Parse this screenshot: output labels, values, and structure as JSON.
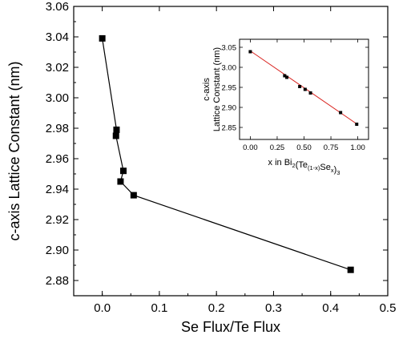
{
  "chart_data": [
    {
      "type": "line",
      "xlabel": "Se Flux/Te Flux",
      "ylabel": "c-axis Lattice Constant (nm)",
      "xlim": [
        -0.05,
        0.5
      ],
      "ylim": [
        2.87,
        3.06
      ],
      "x_ticks": [
        0.0,
        0.1,
        0.2,
        0.3,
        0.4,
        0.5
      ],
      "x_tick_labels": [
        "0.0",
        "0.1",
        "0.2",
        "0.3",
        "0.4",
        "0.5"
      ],
      "y_ticks": [
        2.88,
        2.9,
        2.92,
        2.94,
        2.96,
        2.98,
        3.0,
        3.02,
        3.04,
        3.06
      ],
      "y_tick_labels": [
        "2.88",
        "2.90",
        "2.92",
        "2.94",
        "2.96",
        "2.98",
        "3.00",
        "3.02",
        "3.04",
        "3.06"
      ],
      "grid": false,
      "series": [
        {
          "marker": "square",
          "color": "#000000",
          "x": [
            0.0,
            0.025,
            0.024,
            0.037,
            0.032,
            0.055,
            0.435
          ],
          "y": [
            3.039,
            2.979,
            2.975,
            2.952,
            2.945,
            2.936,
            2.887
          ]
        }
      ]
    },
    {
      "type": "scatter",
      "role": "inset",
      "xlabel_parts": [
        {
          "t": "x in Bi",
          "s": "base"
        },
        {
          "t": "2",
          "s": "sub"
        },
        {
          "t": "(Te",
          "s": "base"
        },
        {
          "t": "(1-x)",
          "s": "sub"
        },
        {
          "t": "Se",
          "s": "base"
        },
        {
          "t": "x",
          "s": "sub"
        },
        {
          "t": ")",
          "s": "base"
        },
        {
          "t": "3",
          "s": "sub"
        }
      ],
      "ylabel_lines": [
        "c-axis",
        "Lattice Constant (nm)"
      ],
      "xlim": [
        -0.1,
        1.1
      ],
      "ylim": [
        2.82,
        3.07
      ],
      "x_ticks": [
        0.0,
        0.25,
        0.5,
        0.75,
        1.0
      ],
      "x_tick_labels": [
        "0.00",
        "0.25",
        "0.50",
        "0.75",
        "1.00"
      ],
      "y_ticks": [
        2.85,
        2.9,
        2.95,
        3.0,
        3.05
      ],
      "y_tick_labels": [
        "2.85",
        "2.90",
        "2.95",
        "3.00",
        "3.05"
      ],
      "grid": false,
      "series": [
        {
          "marker": "square",
          "color": "#000000",
          "x": [
            0.0,
            0.32,
            0.34,
            0.46,
            0.51,
            0.56,
            0.84,
            0.99
          ],
          "y": [
            3.039,
            2.979,
            2.975,
            2.952,
            2.945,
            2.936,
            2.887,
            2.858
          ]
        }
      ],
      "fit_line": {
        "color": "#d9231f",
        "x": [
          0.0,
          1.0
        ],
        "y": [
          3.041,
          2.857
        ]
      }
    }
  ]
}
